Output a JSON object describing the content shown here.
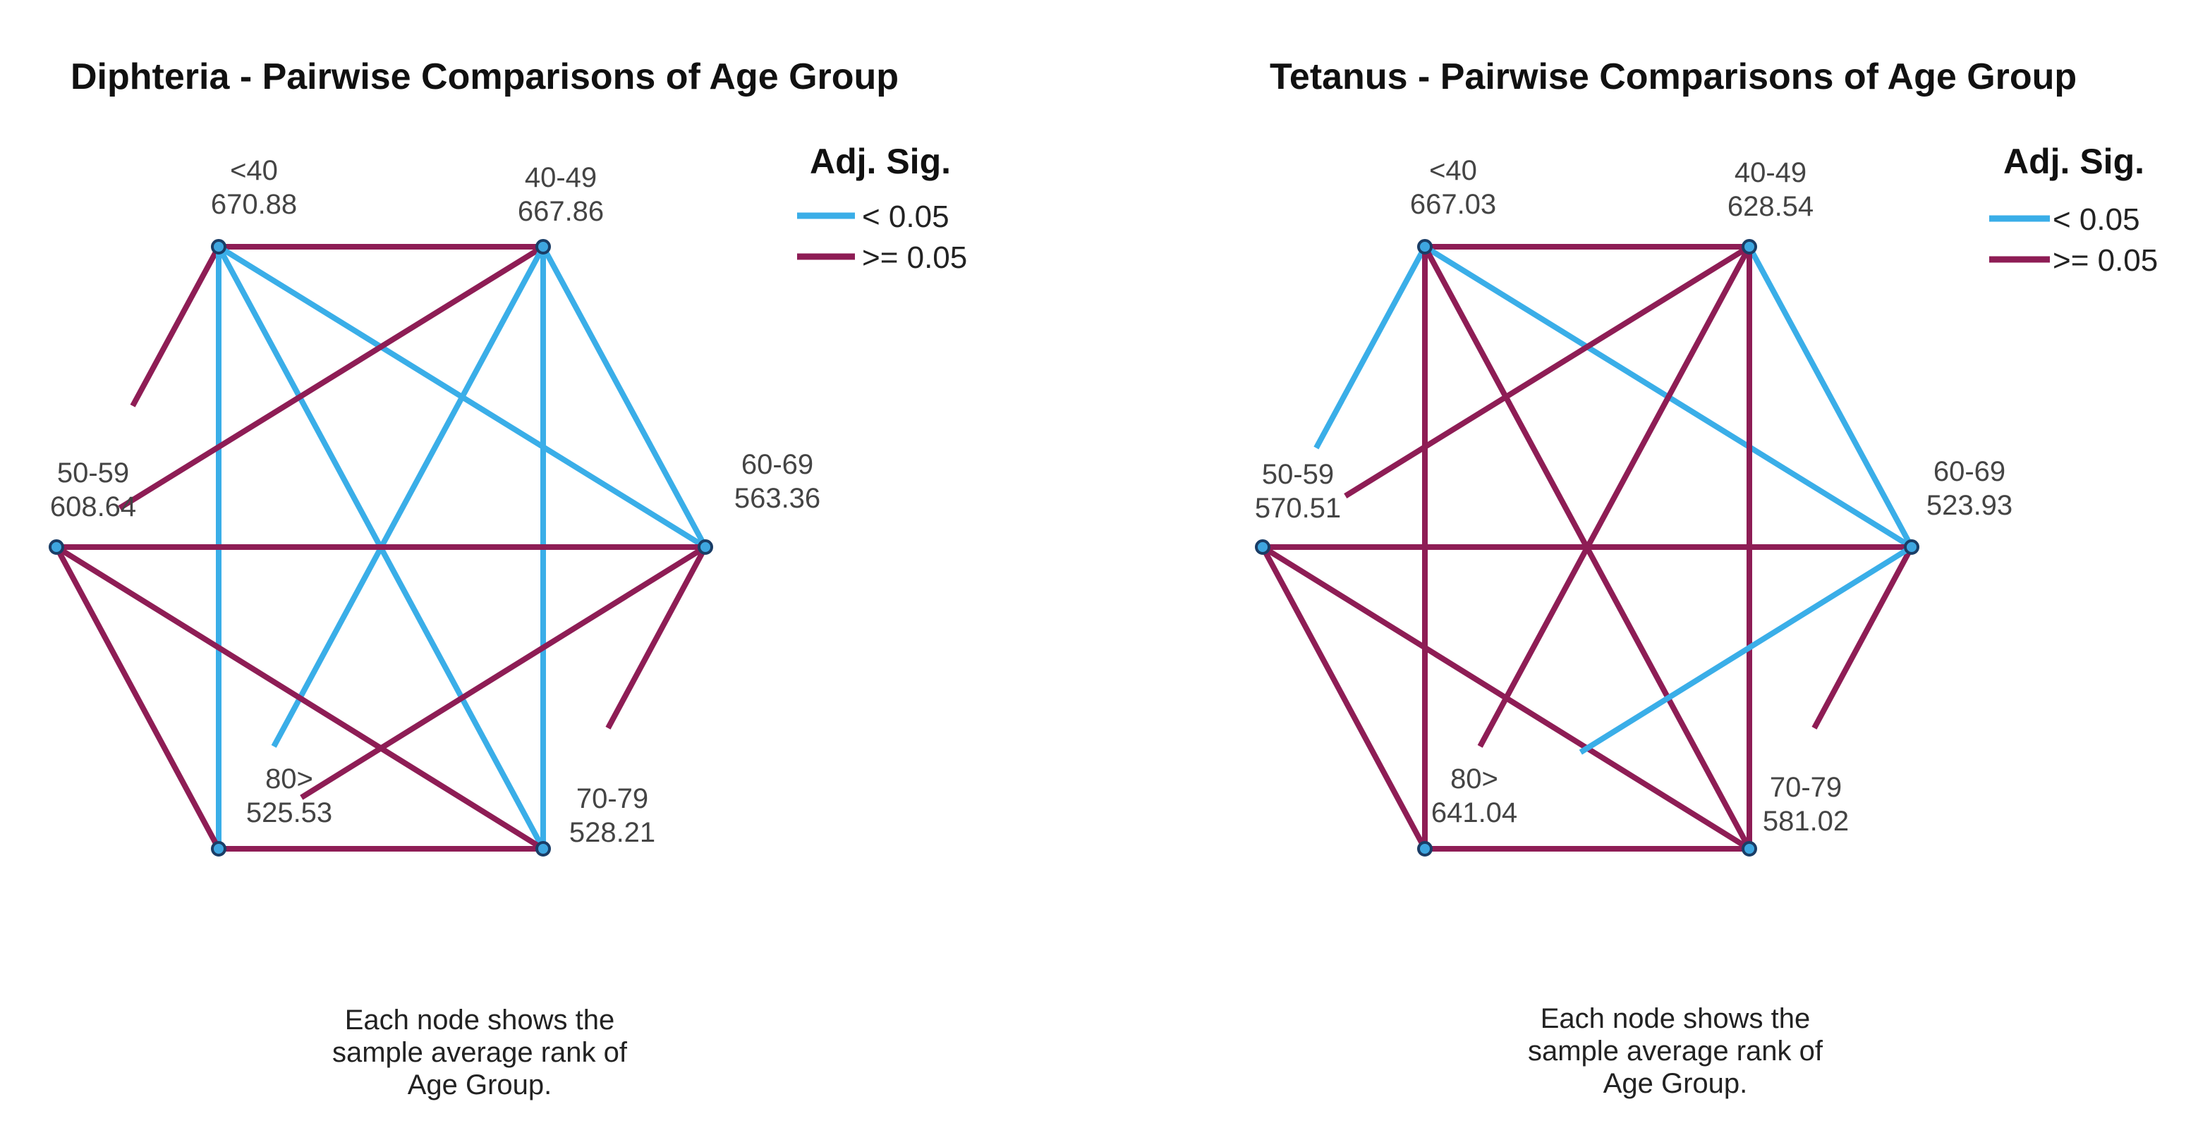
{
  "colors": {
    "sig": "#3aaee8",
    "nonsig": "#8e1d55"
  },
  "legend": {
    "title": "Adj. Sig.",
    "items": [
      {
        "label": "< 0.05",
        "color": "#3aaee8"
      },
      {
        "label": ">= 0.05",
        "color": "#8e1d55"
      }
    ]
  },
  "panels": [
    {
      "title": "Diphteria - Pairwise Comparisons of Age Group",
      "note": [
        "Each node shows the",
        "sample average rank of",
        "Age Group."
      ],
      "nodes": [
        {
          "name": "<40",
          "rank": "670.88"
        },
        {
          "name": "40-49",
          "rank": "667.86"
        },
        {
          "name": "60-69",
          "rank": "563.36"
        },
        {
          "name": "70-79",
          "rank": "528.21"
        },
        {
          "name": "80>",
          "rank": "525.53"
        },
        {
          "name": "50-59",
          "rank": "608.64"
        }
      ],
      "edges": [
        {
          "from": "<40",
          "to": "40-49",
          "sig": false
        },
        {
          "from": "<40",
          "to": "50-59",
          "sig": false
        },
        {
          "from": "<40",
          "to": "60-69",
          "sig": true
        },
        {
          "from": "<40",
          "to": "70-79",
          "sig": true
        },
        {
          "from": "<40",
          "to": "80>",
          "sig": true
        },
        {
          "from": "40-49",
          "to": "50-59",
          "sig": false
        },
        {
          "from": "40-49",
          "to": "60-69",
          "sig": true
        },
        {
          "from": "40-49",
          "to": "70-79",
          "sig": true
        },
        {
          "from": "40-49",
          "to": "80>",
          "sig": true
        },
        {
          "from": "50-59",
          "to": "60-69",
          "sig": false
        },
        {
          "from": "50-59",
          "to": "70-79",
          "sig": false
        },
        {
          "from": "50-59",
          "to": "80>",
          "sig": false
        },
        {
          "from": "60-69",
          "to": "70-79",
          "sig": false
        },
        {
          "from": "60-69",
          "to": "80>",
          "sig": false
        },
        {
          "from": "70-79",
          "to": "80>",
          "sig": false
        }
      ]
    },
    {
      "title": "Tetanus - Pairwise Comparisons of Age Group",
      "note": [
        "Each node shows the",
        "sample average rank of",
        "Age Group."
      ],
      "nodes": [
        {
          "name": "<40",
          "rank": "667.03"
        },
        {
          "name": "40-49",
          "rank": "628.54"
        },
        {
          "name": "60-69",
          "rank": "523.93"
        },
        {
          "name": "70-79",
          "rank": "581.02"
        },
        {
          "name": "80>",
          "rank": "641.04"
        },
        {
          "name": "50-59",
          "rank": "570.51"
        }
      ],
      "edges": [
        {
          "from": "<40",
          "to": "40-49",
          "sig": false
        },
        {
          "from": "<40",
          "to": "50-59",
          "sig": true
        },
        {
          "from": "<40",
          "to": "60-69",
          "sig": true
        },
        {
          "from": "<40",
          "to": "70-79",
          "sig": false
        },
        {
          "from": "<40",
          "to": "80>",
          "sig": false
        },
        {
          "from": "40-49",
          "to": "50-59",
          "sig": false
        },
        {
          "from": "40-49",
          "to": "60-69",
          "sig": true
        },
        {
          "from": "40-49",
          "to": "70-79",
          "sig": false
        },
        {
          "from": "40-49",
          "to": "80>",
          "sig": false
        },
        {
          "from": "50-59",
          "to": "60-69",
          "sig": false
        },
        {
          "from": "50-59",
          "to": "70-79",
          "sig": false
        },
        {
          "from": "50-59",
          "to": "80>",
          "sig": false
        },
        {
          "from": "60-69",
          "to": "70-79",
          "sig": false
        },
        {
          "from": "60-69",
          "to": "80>",
          "sig": true
        },
        {
          "from": "70-79",
          "to": "80>",
          "sig": false
        }
      ]
    }
  ]
}
